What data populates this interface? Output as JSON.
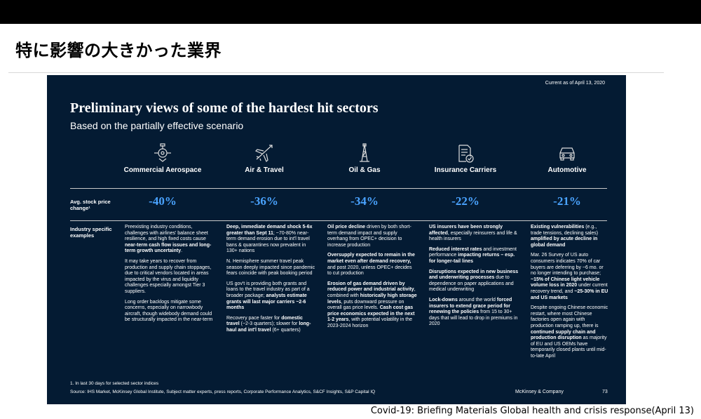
{
  "page": {
    "title": "特に影響の大きかった業界",
    "caption": "Covid-19: Briefing Materials Global health and crisis response(April 13)"
  },
  "slide": {
    "current_as_of": "Current as of April 13, 2020",
    "title": "Preliminary views of some of the hardest hit sectors",
    "subtitle": "Based on the partially effective scenario",
    "row_label_stock": "Avg. stock price change¹",
    "row_label_examples": "Industry specific examples",
    "footnote": "1.   In last 30 days for selected sector indices",
    "source": "Source: IHS Market, McKinsey Global Institute, Subject matter experts, press reports, Corporate Performance Analytics, S&CF Insights, S&P Capital IQ",
    "brand": "McKinsey & Company",
    "page_number": "73",
    "accent_color": "#4aa3ff",
    "background_color": "#041b33"
  },
  "sectors": [
    {
      "icon": "aircraft-engine-icon",
      "name": "Commercial Aerospace",
      "change": "-40%",
      "paragraphs": [
        [
          {
            "t": "Preexisting industry conditions, challenges with airlines' balance sheet resilience, and high fixed costs cause "
          },
          {
            "t": "near-term cash flow issues and long-term growth uncertainty",
            "b": true
          },
          {
            "t": "."
          }
        ],
        [
          {
            "t": "It may take years to recover from production and supply chain stoppages, due to critical vendors located in areas impacted by the virus and liquidity challenges especially amongst Tier 3 suppliers."
          }
        ],
        [
          {
            "t": "Long order backlogs mitigate some concerns, especially on narrowbody aircraft, though widebody demand could be structurally impacted in the near-term"
          }
        ]
      ]
    },
    {
      "icon": "airplane-icon",
      "name": "Air & Travel",
      "change": "-36%",
      "paragraphs": [
        [
          {
            "t": "Deep, immediate demand shock 5-6x greater than Sept 11",
            "b": true
          },
          {
            "t": "; ~70-80% near-term demand erosion due to int'l travel bans & quarantines now prevalent in 130+ nations"
          }
        ],
        [
          {
            "t": "N. Hemisphere summer travel peak season deeply impacted since pandemic fears coincide with peak booking period"
          }
        ],
        [
          {
            "t": "US gov't is providing both grants and loans to the travel industry as part of a broader package; "
          },
          {
            "t": "analysts estimate grants will last major carriers ~2-6 months",
            "b": true
          }
        ],
        [
          {
            "t": "Recovery pace faster for "
          },
          {
            "t": "domestic travel",
            "b": true
          },
          {
            "t": " (~2-3 quarters); slower for "
          },
          {
            "t": "long-haul and int'l travel",
            "b": true
          },
          {
            "t": " (6+ quarters)"
          }
        ]
      ]
    },
    {
      "icon": "oil-derrick-icon",
      "name": "Oil & Gas",
      "change": "-34%",
      "paragraphs": [
        [
          {
            "t": "Oil price decline",
            "b": true
          },
          {
            "t": " driven by both short-term demand impact and supply overhang from OPEC+ decision to increase production"
          }
        ],
        [
          {
            "t": "Oversupply expected to remain in the market even after demand recovery,",
            "b": true
          },
          {
            "t": " and post 2020, unless OPEC+ decides to cut production"
          }
        ],
        [
          {
            "t": "Erosion of gas demand driven by reduced power and industrial activity",
            "b": true
          },
          {
            "t": ", combined with "
          },
          {
            "t": "historically high storage levels",
            "b": true
          },
          {
            "t": ", puts downward pressure on overall gas price levels. "
          },
          {
            "t": "Cash cost gas price economics expected in the next 1-2 years",
            "b": true
          },
          {
            "t": ", with potential volatility in the 2023-2024 horizon"
          }
        ]
      ]
    },
    {
      "icon": "insurance-document-icon",
      "name": "Insurance Carriers",
      "change": "-22%",
      "paragraphs": [
        [
          {
            "t": "US insurers have been strongly affected",
            "b": true
          },
          {
            "t": ", especially reinsurers and life & health insurers"
          }
        ],
        [
          {
            "t": "Reduced interest rates",
            "b": true
          },
          {
            "t": " and investment performance "
          },
          {
            "t": "impacting returns – esp. for longer-tail lines",
            "b": true
          }
        ],
        [
          {
            "t": "Disruptions expected in new business and underwriting processes",
            "b": true
          },
          {
            "t": " due to dependence on paper applications and medical underwriting"
          }
        ],
        [
          {
            "t": "Lock-downs",
            "b": true
          },
          {
            "t": " around the world "
          },
          {
            "t": "forced insurers to extend grace period for renewing the policies",
            "b": true
          },
          {
            "t": " from 15 to 30+ days that will lead to drop in premiums in 2020"
          }
        ]
      ]
    },
    {
      "icon": "car-icon",
      "name": "Automotive",
      "change": "-21%",
      "paragraphs": [
        [
          {
            "t": "Existing vulnerabilities",
            "b": true
          },
          {
            "t": " (e.g., trade tensions, declining sales) "
          },
          {
            "t": "amplified by acute decline in global demand",
            "b": true
          }
        ],
        [
          {
            "t": "Mar. 26 Survey of US auto consumers indicates 70% of car buyers are deferring by ~6 mo. or no longer intending to purchase; "
          },
          {
            "t": "~15% of Chinese light vehicle volume loss in 2020",
            "b": true
          },
          {
            "t": " under current recovery trend, and "
          },
          {
            "t": "~25-30% in EU and US markets",
            "b": true
          }
        ],
        [
          {
            "t": "Despite ongoing Chinese economic restart, where most Chinese factories open again with production ramping up, there is "
          },
          {
            "t": "continued supply chain and production disruption",
            "b": true
          },
          {
            "t": " as majority of EU and US OEMs have temporarily closed plants until mid-to-late April"
          }
        ]
      ]
    }
  ]
}
